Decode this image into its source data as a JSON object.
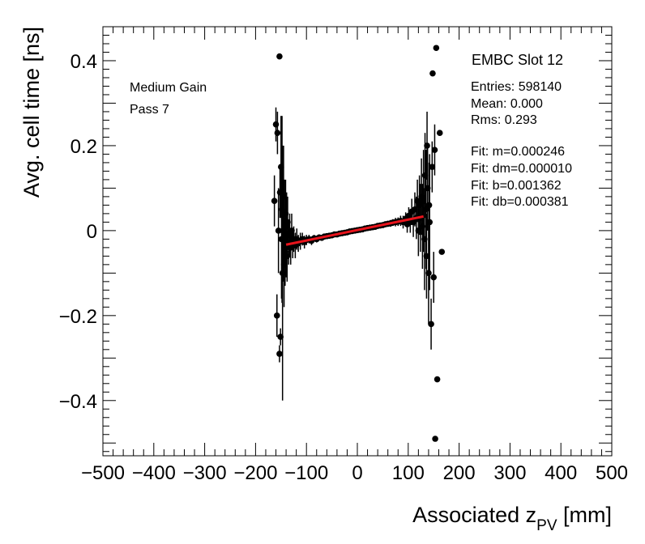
{
  "chart_data": {
    "type": "scatter",
    "xlabel": "Associated z",
    "xlabel_sub": "PV",
    "xlabel_unit": " [mm]",
    "ylabel": "Avg. cell time [ns]",
    "xlim": [
      -500,
      500
    ],
    "ylim": [
      -0.53,
      0.48
    ],
    "x_ticks": [
      -500,
      -400,
      -300,
      -200,
      -100,
      0,
      100,
      200,
      300,
      400,
      500
    ],
    "x_tick_labels": [
      "−500",
      "−400",
      "−300",
      "−200",
      "−100",
      "0",
      "100",
      "200",
      "300",
      "400",
      "500"
    ],
    "y_ticks": [
      -0.4,
      -0.2,
      0,
      0.2,
      0.4
    ],
    "y_tick_labels": [
      "−0.4",
      "−0.2",
      "0",
      "0.2",
      "0.4"
    ],
    "grid": false,
    "legend": "none",
    "fit": {
      "slope": 0.000246,
      "intercept": 0.001362,
      "x_range": [
        -140,
        130
      ],
      "color": "#e8141c"
    },
    "points": [
      {
        "x": -163,
        "y": 0.07,
        "err": 0.06
      },
      {
        "x": -160,
        "y": 0.25,
        "err": 0.04
      },
      {
        "x": -158,
        "y": -0.2,
        "err": 0.05
      },
      {
        "x": -157,
        "y": 0.23,
        "err": 0.05
      },
      {
        "x": -155,
        "y": 0.0,
        "err": 0.1
      },
      {
        "x": -153,
        "y": 0.41,
        "err": 0.0
      },
      {
        "x": -153,
        "y": -0.29,
        "err": 0.02
      },
      {
        "x": -152,
        "y": 0.09,
        "err": 0.06
      },
      {
        "x": -151,
        "y": -0.25,
        "err": 0.02
      },
      {
        "x": -150,
        "y": 0.15,
        "err": 0.12
      },
      {
        "x": -149,
        "y": -0.02,
        "err": 0.14
      },
      {
        "x": -148,
        "y": 0.05,
        "err": 0.22
      },
      {
        "x": -147,
        "y": -0.1,
        "err": 0.3
      },
      {
        "x": -146,
        "y": 0.0,
        "err": 0.12
      },
      {
        "x": -145,
        "y": 0.08,
        "err": 0.12
      },
      {
        "x": -144,
        "y": -0.08,
        "err": 0.1
      },
      {
        "x": -143,
        "y": 0.02,
        "err": 0.1
      },
      {
        "x": -142,
        "y": -0.05,
        "err": 0.08
      },
      {
        "x": -141,
        "y": 0.04,
        "err": 0.08
      },
      {
        "x": -140,
        "y": -0.04,
        "err": 0.07
      },
      {
        "x": -139,
        "y": 0.01,
        "err": 0.08
      },
      {
        "x": -138,
        "y": -0.06,
        "err": 0.06
      },
      {
        "x": -137,
        "y": 0.02,
        "err": 0.06
      },
      {
        "x": -135,
        "y": -0.03,
        "err": 0.05
      },
      {
        "x": -133,
        "y": -0.01,
        "err": 0.05
      },
      {
        "x": -131,
        "y": -0.04,
        "err": 0.04
      },
      {
        "x": -129,
        "y": 0.0,
        "err": 0.04
      },
      {
        "x": -127,
        "y": -0.03,
        "err": 0.035
      },
      {
        "x": -125,
        "y": -0.02,
        "err": 0.03
      },
      {
        "x": -122,
        "y": -0.035,
        "err": 0.03
      },
      {
        "x": -119,
        "y": -0.02,
        "err": 0.025
      },
      {
        "x": -116,
        "y": -0.03,
        "err": 0.02
      },
      {
        "x": -112,
        "y": -0.025,
        "err": 0.02
      },
      {
        "x": -108,
        "y": -0.02,
        "err": 0.015
      },
      {
        "x": -104,
        "y": -0.027,
        "err": 0.015
      },
      {
        "x": -100,
        "y": -0.022,
        "err": 0.012
      },
      {
        "x": -95,
        "y": -0.02,
        "err": 0.01
      },
      {
        "x": -90,
        "y": -0.024,
        "err": 0.01
      },
      {
        "x": -85,
        "y": -0.018,
        "err": 0.008
      },
      {
        "x": -80,
        "y": -0.02,
        "err": 0.008
      },
      {
        "x": -75,
        "y": -0.016,
        "err": 0.007
      },
      {
        "x": -70,
        "y": -0.017,
        "err": 0.007
      },
      {
        "x": -65,
        "y": -0.014,
        "err": 0.006
      },
      {
        "x": -60,
        "y": -0.013,
        "err": 0.006
      },
      {
        "x": -55,
        "y": -0.012,
        "err": 0.006
      },
      {
        "x": -50,
        "y": -0.011,
        "err": 0.005
      },
      {
        "x": -45,
        "y": -0.009,
        "err": 0.005
      },
      {
        "x": -40,
        "y": -0.009,
        "err": 0.005
      },
      {
        "x": -35,
        "y": -0.007,
        "err": 0.005
      },
      {
        "x": -30,
        "y": -0.006,
        "err": 0.005
      },
      {
        "x": -25,
        "y": -0.005,
        "err": 0.005
      },
      {
        "x": -20,
        "y": -0.004,
        "err": 0.005
      },
      {
        "x": -15,
        "y": -0.002,
        "err": 0.005
      },
      {
        "x": -10,
        "y": -0.001,
        "err": 0.005
      },
      {
        "x": -5,
        "y": 0.0,
        "err": 0.005
      },
      {
        "x": 0,
        "y": 0.001,
        "err": 0.005
      },
      {
        "x": 5,
        "y": 0.002,
        "err": 0.005
      },
      {
        "x": 10,
        "y": 0.003,
        "err": 0.005
      },
      {
        "x": 15,
        "y": 0.005,
        "err": 0.005
      },
      {
        "x": 20,
        "y": 0.006,
        "err": 0.005
      },
      {
        "x": 25,
        "y": 0.007,
        "err": 0.005
      },
      {
        "x": 30,
        "y": 0.008,
        "err": 0.005
      },
      {
        "x": 35,
        "y": 0.009,
        "err": 0.006
      },
      {
        "x": 40,
        "y": 0.011,
        "err": 0.006
      },
      {
        "x": 45,
        "y": 0.012,
        "err": 0.006
      },
      {
        "x": 50,
        "y": 0.013,
        "err": 0.006
      },
      {
        "x": 55,
        "y": 0.015,
        "err": 0.007
      },
      {
        "x": 60,
        "y": 0.016,
        "err": 0.007
      },
      {
        "x": 65,
        "y": 0.017,
        "err": 0.008
      },
      {
        "x": 70,
        "y": 0.019,
        "err": 0.008
      },
      {
        "x": 75,
        "y": 0.02,
        "err": 0.01
      },
      {
        "x": 80,
        "y": 0.021,
        "err": 0.01
      },
      {
        "x": 85,
        "y": 0.023,
        "err": 0.012
      },
      {
        "x": 90,
        "y": 0.02,
        "err": 0.015
      },
      {
        "x": 95,
        "y": 0.028,
        "err": 0.015
      },
      {
        "x": 98,
        "y": 0.015,
        "err": 0.02
      },
      {
        "x": 101,
        "y": 0.035,
        "err": 0.02
      },
      {
        "x": 104,
        "y": 0.02,
        "err": 0.025
      },
      {
        "x": 107,
        "y": 0.045,
        "err": 0.03
      },
      {
        "x": 110,
        "y": 0.02,
        "err": 0.035
      },
      {
        "x": 113,
        "y": 0.05,
        "err": 0.04
      },
      {
        "x": 116,
        "y": 0.03,
        "err": 0.05
      },
      {
        "x": 118,
        "y": 0.07,
        "err": 0.05
      },
      {
        "x": 120,
        "y": 0.0,
        "err": 0.06
      },
      {
        "x": 122,
        "y": 0.06,
        "err": 0.07
      },
      {
        "x": 124,
        "y": 0.03,
        "err": 0.08
      },
      {
        "x": 126,
        "y": 0.08,
        "err": 0.09
      },
      {
        "x": 128,
        "y": 0.01,
        "err": 0.1
      },
      {
        "x": 130,
        "y": 0.07,
        "err": 0.12
      },
      {
        "x": 132,
        "y": -0.02,
        "err": 0.12
      },
      {
        "x": 133,
        "y": 0.13,
        "err": 0.1
      },
      {
        "x": 135,
        "y": 0.05,
        "err": 0.14
      },
      {
        "x": 136,
        "y": -0.06,
        "err": 0.1
      },
      {
        "x": 137,
        "y": 0.2,
        "err": 0.08
      },
      {
        "x": 138,
        "y": 0.1,
        "err": 0.1
      },
      {
        "x": 140,
        "y": -0.1,
        "err": 0.12
      },
      {
        "x": 141,
        "y": 0.06,
        "err": 0.1
      },
      {
        "x": 142,
        "y": 0.02,
        "err": 0.16
      },
      {
        "x": 145,
        "y": -0.22,
        "err": 0.06
      },
      {
        "x": 147,
        "y": 0.15,
        "err": 0.06
      },
      {
        "x": 148,
        "y": 0.37,
        "err": 0.0
      },
      {
        "x": 150,
        "y": -0.11,
        "err": 0.06
      },
      {
        "x": 152,
        "y": 0.19,
        "err": 0.06
      },
      {
        "x": 153,
        "y": -0.49,
        "err": 0.0
      },
      {
        "x": 155,
        "y": 0.43,
        "err": 0.0
      },
      {
        "x": 157,
        "y": -0.35,
        "err": 0.0
      },
      {
        "x": 162,
        "y": 0.23,
        "err": 0.0
      },
      {
        "x": 166,
        "y": -0.05,
        "err": 0.0
      }
    ]
  },
  "annotations": {
    "gain": "Medium Gain",
    "pass": "Pass 7",
    "slot": "EMBC Slot 12",
    "entries": "Entries: 598140",
    "mean": "Mean: 0.000",
    "rms": "Rms: 0.293",
    "fit_m": "Fit: m=0.000246",
    "fit_dm": "Fit: dm=0.000010",
    "fit_b": "Fit: b=0.001362",
    "fit_db": "Fit: db=0.000381"
  }
}
